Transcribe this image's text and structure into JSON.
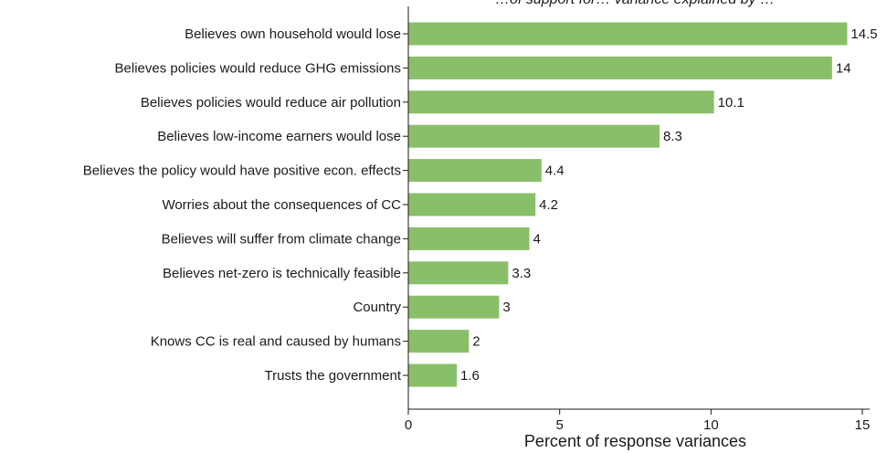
{
  "chart_data": {
    "type": "bar",
    "orientation": "horizontal",
    "title": "…of support for… variance explained by …",
    "xlabel": "Percent of response variances",
    "ylabel": "",
    "xlim": [
      0,
      15
    ],
    "xticks": [
      0,
      5,
      10,
      15
    ],
    "bar_color": "#8abf6a",
    "grid": false,
    "categories": [
      "Believes own household would lose",
      "Believes policies would reduce GHG emissions",
      "Believes policies would reduce air pollution",
      "Believes low-income earners would lose",
      "Believes the policy would have positive econ. effects",
      "Worries about the consequences of CC",
      "Believes will suffer from climate change",
      "Believes net-zero is technically feasible",
      "Country",
      "Knows CC is real and caused by humans",
      "Trusts the government"
    ],
    "values": [
      14.5,
      14,
      10.1,
      8.3,
      4.4,
      4.2,
      4,
      3.3,
      3,
      2,
      1.6
    ],
    "value_labels": [
      "14.5",
      "14",
      "10.1",
      "8.3",
      "4.4",
      "4.2",
      "4",
      "3.3",
      "3",
      "2",
      "1.6"
    ]
  }
}
